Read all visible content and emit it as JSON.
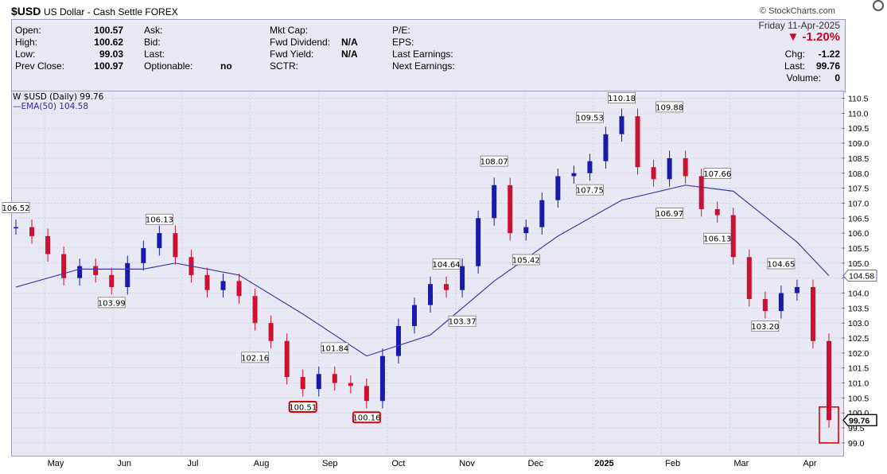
{
  "header": {
    "symbol": "$USD",
    "name": "US Dollar - Cash Settle FOREX",
    "source": "© StockCharts.com"
  },
  "info": {
    "open_label": "Open:",
    "open": "100.57",
    "high_label": "High:",
    "high": "100.62",
    "low_label": "Low:",
    "low": "99.03",
    "prev_label": "Prev Close:",
    "prev": "100.97",
    "ask_label": "Ask:",
    "bid_label": "Bid:",
    "last_label_l": "Last:",
    "optionable_label": "Optionable:",
    "optionable": "no",
    "mktcap_label": "Mkt Cap:",
    "fwd_div_label": "Fwd Dividend:",
    "fwd_div": "N/A",
    "fwd_yield_label": "Fwd Yield:",
    "fwd_yield": "N/A",
    "sctr_label": "SCTR:",
    "pe_label": "P/E:",
    "eps_label": "EPS:",
    "last_earn_label": "Last Earnings:",
    "next_earn_label": "Next Earnings:",
    "date": "Friday 11-Apr-2025",
    "pct_change": "▼ -1.20%",
    "chg_label": "Chg:",
    "chg": "-1.22",
    "last_label": "Last:",
    "last": "99.76",
    "volume_label": "Volume:",
    "volume": "0"
  },
  "legend": {
    "price": "W $USD (Daily) 99.76",
    "ema": "—EMA(50) 104.58"
  },
  "colors": {
    "up": "#1a1aa8",
    "down": "#cc1133",
    "ema": "#3a3ab0",
    "bg": "#e9e9f5",
    "grid": "#c4c8de"
  },
  "chart_data": {
    "type": "line",
    "title": "$USD (Daily) 99.76",
    "ylim": [
      98.6,
      110.7
    ],
    "yticks": [
      "99.0",
      "99.5",
      "100.0",
      "100.5",
      "101.0",
      "101.5",
      "102.0",
      "102.5",
      "103.0",
      "103.5",
      "104.0",
      "104.5",
      "105.0",
      "105.5",
      "106.0",
      "106.5",
      "107.0",
      "107.5",
      "108.0",
      "108.5",
      "109.0",
      "109.5",
      "110.0",
      "110.5"
    ],
    "xlabels": [
      "May",
      "Jun",
      "Jul",
      "Aug",
      "Sep",
      "Oct",
      "Nov",
      "Dec",
      "2025",
      "Feb",
      "Mar",
      "Apr"
    ],
    "series": [
      {
        "name": "$USD (Daily)",
        "x": [
          "Apr-24",
          "May-01",
          "May-08",
          "May-15",
          "May-22",
          "May-29",
          "Jun-05",
          "Jun-12",
          "Jun-19",
          "Jun-26",
          "Jul-03",
          "Jul-10",
          "Jul-17",
          "Jul-24",
          "Jul-31",
          "Aug-07",
          "Aug-14",
          "Aug-21",
          "Aug-28",
          "Sep-04",
          "Sep-11",
          "Sep-18",
          "Sep-25",
          "Oct-02",
          "Oct-09",
          "Oct-16",
          "Oct-23",
          "Oct-30",
          "Nov-06",
          "Nov-13",
          "Nov-20",
          "Nov-27",
          "Dec-04",
          "Dec-11",
          "Dec-18",
          "Dec-25",
          "Jan-01",
          "Jan-08",
          "Jan-13",
          "Jan-20",
          "Jan-27",
          "Feb-03",
          "Feb-10",
          "Feb-17",
          "Feb-24",
          "Mar-03",
          "Mar-10",
          "Mar-17",
          "Mar-24",
          "Mar-31",
          "Apr-07",
          "Apr-11"
        ],
        "values": [
          106.2,
          105.9,
          105.3,
          104.5,
          104.9,
          104.6,
          104.2,
          105.0,
          105.5,
          106.0,
          105.2,
          104.6,
          104.1,
          104.4,
          103.9,
          103.0,
          102.4,
          101.2,
          100.8,
          101.3,
          101.0,
          100.9,
          100.4,
          101.9,
          102.9,
          103.6,
          104.3,
          104.1,
          104.9,
          106.5,
          107.6,
          106.0,
          106.2,
          107.1,
          107.9,
          108.0,
          108.4,
          109.3,
          109.9,
          108.2,
          107.8,
          108.5,
          107.9,
          106.8,
          106.6,
          105.2,
          103.8,
          103.4,
          104.0,
          104.2,
          102.4,
          99.76
        ]
      },
      {
        "name": "EMA(50)",
        "x": [
          "Apr-24",
          "May-22",
          "Jun-19",
          "Jul-03",
          "Jul-31",
          "Aug-28",
          "Sep-25",
          "Oct-23",
          "Nov-20",
          "Dec-18",
          "Jan-13",
          "Feb-10",
          "Mar-03",
          "Mar-31",
          "Apr-11"
        ],
        "values": [
          104.2,
          104.8,
          104.8,
          105.0,
          104.6,
          103.3,
          101.9,
          102.6,
          104.4,
          105.9,
          107.1,
          107.6,
          107.4,
          105.7,
          104.58
        ]
      }
    ],
    "annotations": [
      {
        "label": "106.52",
        "x": "Apr-24",
        "y": 106.52
      },
      {
        "label": "103.99",
        "x": "Jun-05",
        "y": 103.99
      },
      {
        "label": "106.13",
        "x": "Jun-26",
        "y": 106.13
      },
      {
        "label": "102.16",
        "x": "Aug-07",
        "y": 102.16
      },
      {
        "label": "100.51",
        "x": "Aug-28",
        "y": 100.51,
        "boxed": true
      },
      {
        "label": "101.84",
        "x": "Sep-11",
        "y": 101.84
      },
      {
        "label": "100.16",
        "x": "Sep-25",
        "y": 100.16,
        "boxed": true
      },
      {
        "label": "104.64",
        "x": "Oct-30",
        "y": 104.64
      },
      {
        "label": "103.37",
        "x": "Nov-06",
        "y": 103.37
      },
      {
        "label": "108.07",
        "x": "Nov-20",
        "y": 108.07
      },
      {
        "label": "105.42",
        "x": "Dec-04",
        "y": 105.42
      },
      {
        "label": "109.53",
        "x": "Jan-01",
        "y": 109.53
      },
      {
        "label": "107.75",
        "x": "Jan-01",
        "y": 107.75
      },
      {
        "label": "110.18",
        "x": "Jan-13",
        "y": 110.18
      },
      {
        "label": "109.88",
        "x": "Feb-03",
        "y": 109.88
      },
      {
        "label": "106.97",
        "x": "Feb-03",
        "y": 106.97
      },
      {
        "label": "107.66",
        "x": "Feb-24",
        "y": 107.66
      },
      {
        "label": "106.13",
        "x": "Feb-24",
        "y": 106.13
      },
      {
        "label": "104.65",
        "x": "Mar-24",
        "y": 104.65
      },
      {
        "label": "103.20",
        "x": "Mar-17",
        "y": 103.2
      }
    ],
    "last_value_tags": [
      "104.58",
      "99.76"
    ],
    "grid": true
  }
}
